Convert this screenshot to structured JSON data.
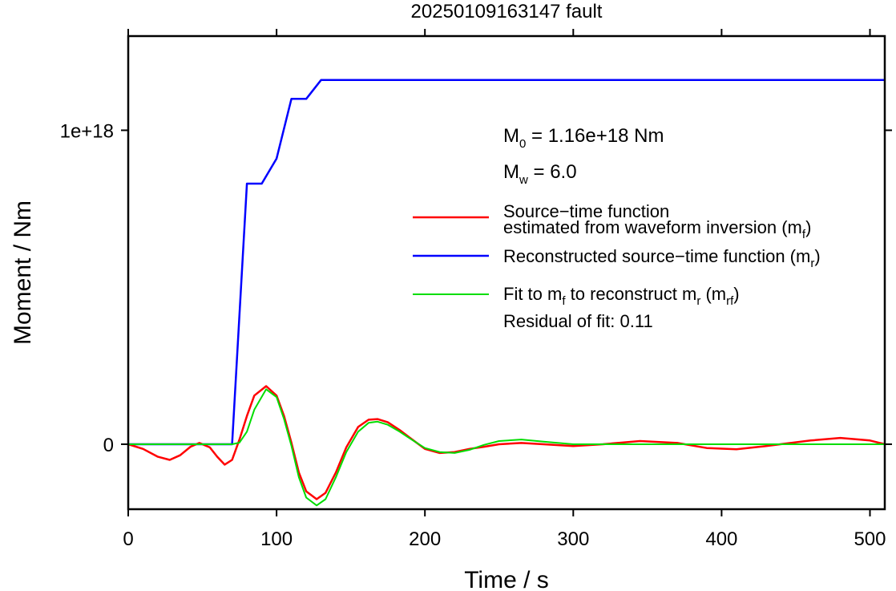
{
  "chart_data": {
    "type": "line",
    "title": "20250109163147 fault",
    "xlabel": "Time / s",
    "ylabel": "Moment / Nm",
    "xlim": [
      0,
      510
    ],
    "ylim": [
      -2.07e+17,
      1.3e+18
    ],
    "x_ticks": [
      {
        "value": 0,
        "label": "0"
      },
      {
        "value": 100,
        "label": "100"
      },
      {
        "value": 200,
        "label": "200"
      },
      {
        "value": 300,
        "label": "300"
      },
      {
        "value": 400,
        "label": "400"
      },
      {
        "value": 500,
        "label": "500"
      }
    ],
    "y_ticks": [
      {
        "value": 0,
        "label": "0"
      },
      {
        "value": 1e+18,
        "label": "1e+18"
      }
    ],
    "grid": false,
    "annotations": {
      "m0": {
        "main": "M",
        "sub": "0",
        "rest": " = 1.16e+18 Nm"
      },
      "mw": {
        "main": "M",
        "sub": "w",
        "rest": " = 6.0"
      },
      "residual": "Residual of fit: 0.11"
    },
    "legend": {
      "placement": "right",
      "entries": [
        {
          "color": "#ff0000",
          "line1": "Source−time function",
          "line2_pre": "estimated from waveform inversion (m",
          "line2_sub": "f",
          "line2_post": ")"
        },
        {
          "color": "#0000ff",
          "line1_pre": "Reconstructed source−time function (m",
          "line1_sub": "r",
          "line1_post": ")"
        },
        {
          "color": "#00dd00",
          "p1": "Fit to m",
          "s1": "f",
          "p2": " to reconstruct m",
          "s2": "r",
          "p3": " (m",
          "s3": "rf",
          "p4": ")"
        }
      ]
    },
    "series": [
      {
        "key": "mr",
        "color": "#0000ff",
        "x": [
          0,
          70,
          80,
          90,
          100,
          110,
          120,
          130,
          510
        ],
        "y": [
          0,
          0,
          8.3e+17,
          8.3e+17,
          9.1e+17,
          1.1e+18,
          1.1e+18,
          1.16e+18,
          1.16e+18
        ]
      },
      {
        "key": "mf",
        "color": "#ff0000",
        "x": [
          0,
          10,
          20,
          28,
          35,
          42,
          48,
          55,
          60,
          65,
          70,
          75,
          80,
          85,
          93,
          100,
          105,
          110,
          115,
          120,
          127,
          133,
          140,
          147,
          155,
          162,
          168,
          175,
          183,
          190,
          200,
          210,
          220,
          230,
          240,
          250,
          265,
          280,
          300,
          320,
          345,
          370,
          390,
          410,
          430,
          460,
          480,
          500,
          510
        ],
        "y": [
          0,
          -1.5e+16,
          -4e+16,
          -5e+16,
          -3.5e+16,
          -8000000000000000.0,
          4000000000000000.0,
          -1e+16,
          -4e+16,
          -6.5e+16,
          -5e+16,
          1.5e+16,
          9e+16,
          1.55e+17,
          1.85e+17,
          1.55e+17,
          9e+16,
          5000000000000000.0,
          -9e+16,
          -1.5e+17,
          -1.75e+17,
          -1.55e+17,
          -9e+16,
          -1e+16,
          5.5e+16,
          7.8e+16,
          8e+16,
          7e+16,
          4.5e+16,
          2e+16,
          -1.5e+16,
          -2.8e+16,
          -2.5e+16,
          -1.5e+16,
          -8000000000000000.0,
          0,
          4000000000000000.0,
          0,
          -6000000000000000.0,
          0,
          1e+16,
          4000000000000000.0,
          -1.2e+16,
          -1.6e+16,
          -6000000000000000.0,
          1.2e+16,
          2e+16,
          1.2e+16,
          0
        ]
      },
      {
        "key": "mrf",
        "color": "#00dd00",
        "x": [
          0,
          70,
          75,
          80,
          85,
          93,
          100,
          105,
          110,
          115,
          120,
          127,
          133,
          140,
          147,
          155,
          162,
          168,
          175,
          183,
          190,
          200,
          210,
          220,
          230,
          240,
          250,
          265,
          280,
          300,
          320,
          350,
          380,
          420,
          460,
          510
        ],
        "y": [
          0,
          0,
          5000000000000000.0,
          4e+16,
          1.1e+17,
          1.75e+17,
          1.5e+17,
          8e+16,
          -5000000000000000.0,
          -1.05e+17,
          -1.7e+17,
          -1.95e+17,
          -1.75e+17,
          -1.05e+17,
          -2.5e+16,
          4e+16,
          6.8e+16,
          7.2e+16,
          6.2e+16,
          4e+16,
          1.8e+16,
          -1.2e+16,
          -2.5e+16,
          -2.8e+16,
          -1.8e+16,
          -2000000000000000.0,
          1e+16,
          1.5e+16,
          8000000000000000.0,
          0,
          0,
          0,
          0,
          0,
          0,
          0
        ]
      }
    ]
  }
}
